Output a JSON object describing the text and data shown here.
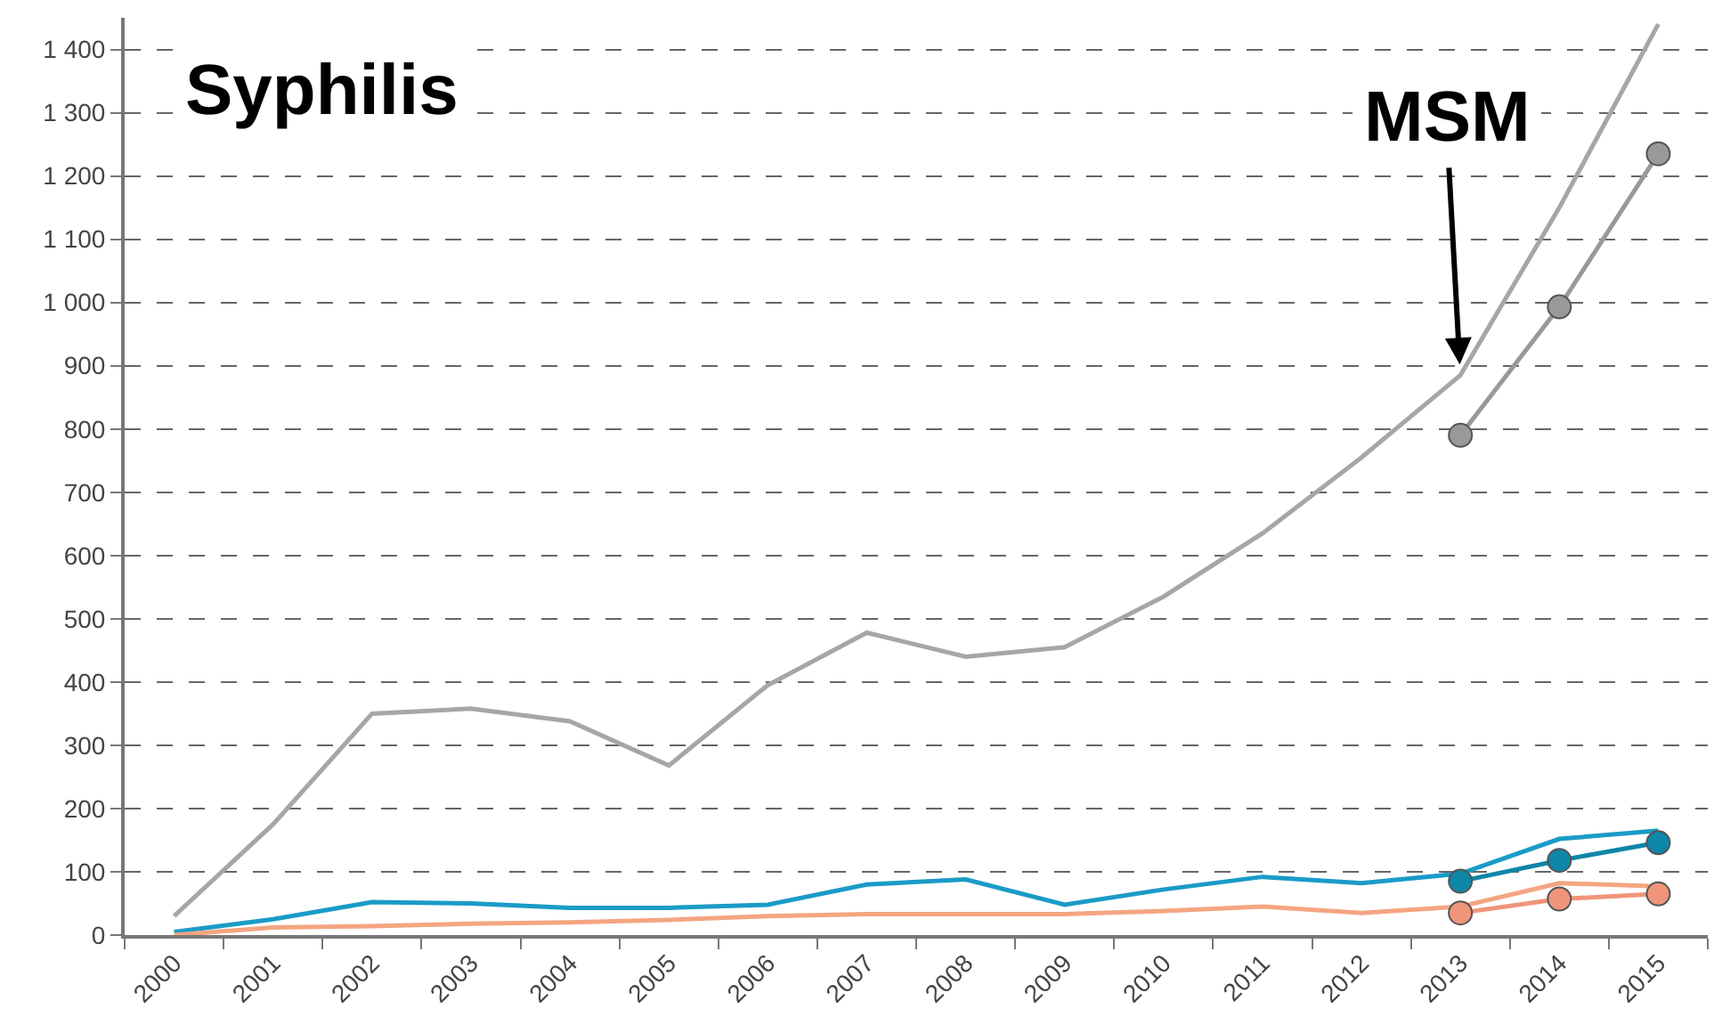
{
  "chart_data": {
    "type": "line",
    "title": "Syphilis",
    "categories": [
      "2000",
      "2001",
      "2002",
      "2003",
      "2004",
      "2005",
      "2006",
      "2007",
      "2008",
      "2009",
      "2010",
      "2011",
      "2012",
      "2013",
      "2014",
      "2015"
    ],
    "series": [
      {
        "color": "#a6a6a6",
        "marker": "none",
        "values": [
          30,
          175,
          350,
          358,
          338,
          268,
          395,
          478,
          440,
          455,
          535,
          635,
          755,
          885,
          1150,
          1440
        ]
      },
      {
        "color": "#1a9bc7",
        "marker": "none",
        "values": [
          5,
          25,
          52,
          50,
          43,
          43,
          48,
          80,
          88,
          48,
          72,
          92,
          82,
          97,
          152,
          165
        ]
      },
      {
        "color": "#f4a582",
        "marker": "none",
        "values": [
          0,
          12,
          14,
          18,
          20,
          24,
          30,
          33,
          33,
          33,
          38,
          45,
          35,
          45,
          82,
          77
        ]
      },
      {
        "color": "#999999",
        "marker": "circle",
        "values": [
          null,
          null,
          null,
          null,
          null,
          null,
          null,
          null,
          null,
          null,
          null,
          null,
          null,
          790,
          993,
          1235
        ]
      },
      {
        "color": "#0e86a8",
        "marker": "circle",
        "values": [
          null,
          null,
          null,
          null,
          null,
          null,
          null,
          null,
          null,
          null,
          null,
          null,
          null,
          85,
          118,
          146
        ]
      },
      {
        "color": "#f0957a",
        "marker": "circle",
        "values": [
          null,
          null,
          null,
          null,
          null,
          null,
          null,
          null,
          null,
          null,
          null,
          null,
          null,
          35,
          57,
          65
        ]
      }
    ],
    "annotations": [
      {
        "text": "MSM",
        "x": "2013",
        "y": 885
      }
    ],
    "ylim": [
      0,
      1450
    ],
    "yticks": [
      0,
      100,
      200,
      300,
      400,
      500,
      600,
      700,
      800,
      900,
      {
        "value": 1000,
        "label": "1 000"
      },
      {
        "value": 1100,
        "label": "1 100"
      },
      {
        "value": 1200,
        "label": "1 200"
      },
      {
        "value": 1300,
        "label": "1 300"
      },
      {
        "value": 1400,
        "label": "1 400"
      }
    ],
    "grid": "y",
    "line_style": "solid"
  }
}
